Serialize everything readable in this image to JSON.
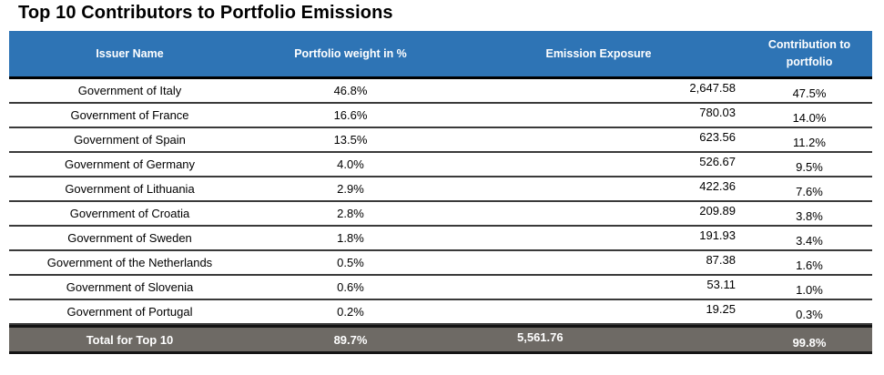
{
  "title": "Top 10 Contributors to Portfolio Emissions",
  "table": {
    "columns": [
      "Issuer Name",
      "Portfolio weight in %",
      "Emission Exposure",
      "Contribution to portfolio"
    ],
    "rows": [
      {
        "issuer": "Government of Italy",
        "weight": "46.8%",
        "emission": "2,647.58",
        "contribution": "47.5%"
      },
      {
        "issuer": "Government of France",
        "weight": "16.6%",
        "emission": "780.03",
        "contribution": "14.0%"
      },
      {
        "issuer": "Government of Spain",
        "weight": "13.5%",
        "emission": "623.56",
        "contribution": "11.2%"
      },
      {
        "issuer": "Government of Germany",
        "weight": "4.0%",
        "emission": "526.67",
        "contribution": "9.5%"
      },
      {
        "issuer": "Government of Lithuania",
        "weight": "2.9%",
        "emission": "422.36",
        "contribution": "7.6%"
      },
      {
        "issuer": "Government of Croatia",
        "weight": "2.8%",
        "emission": "209.89",
        "contribution": "3.8%"
      },
      {
        "issuer": "Government of Sweden",
        "weight": "1.8%",
        "emission": "191.93",
        "contribution": "3.4%"
      },
      {
        "issuer": "Government of the Netherlands",
        "weight": "0.5%",
        "emission": "87.38",
        "contribution": "1.6%"
      },
      {
        "issuer": "Government of Slovenia",
        "weight": "0.6%",
        "emission": "53.11",
        "contribution": "1.0%"
      },
      {
        "issuer": "Government of Portugal",
        "weight": "0.2%",
        "emission": "19.25",
        "contribution": "0.3%"
      }
    ],
    "total": {
      "issuer": "Total for Top 10",
      "weight": "89.7%",
      "emission": "5,561.76",
      "contribution": "99.8%"
    }
  },
  "colors": {
    "header_bg": "#2E74B5",
    "header_text": "#FFFFFF",
    "total_bg": "#6E6A65",
    "total_text": "#FFFFFF",
    "row_separator": "#3A3A3A"
  },
  "chart_data": {
    "type": "table",
    "title": "Top 10 Contributors to Portfolio Emissions",
    "columns": [
      "Issuer Name",
      "Portfolio weight in %",
      "Emission Exposure",
      "Contribution to portfolio"
    ],
    "rows": [
      [
        "Government of Italy",
        46.8,
        2647.58,
        47.5
      ],
      [
        "Government of France",
        16.6,
        780.03,
        14.0
      ],
      [
        "Government of Spain",
        13.5,
        623.56,
        11.2
      ],
      [
        "Government of Germany",
        4.0,
        526.67,
        9.5
      ],
      [
        "Government of Lithuania",
        2.9,
        422.36,
        7.6
      ],
      [
        "Government of Croatia",
        2.8,
        209.89,
        3.8
      ],
      [
        "Government of Sweden",
        1.8,
        191.93,
        3.4
      ],
      [
        "Government of the Netherlands",
        0.5,
        87.38,
        1.6
      ],
      [
        "Government of Slovenia",
        0.6,
        53.11,
        1.0
      ],
      [
        "Government of Portugal",
        0.2,
        19.25,
        0.3
      ]
    ],
    "total_row": [
      "Total for Top 10",
      89.7,
      5561.76,
      99.8
    ]
  }
}
